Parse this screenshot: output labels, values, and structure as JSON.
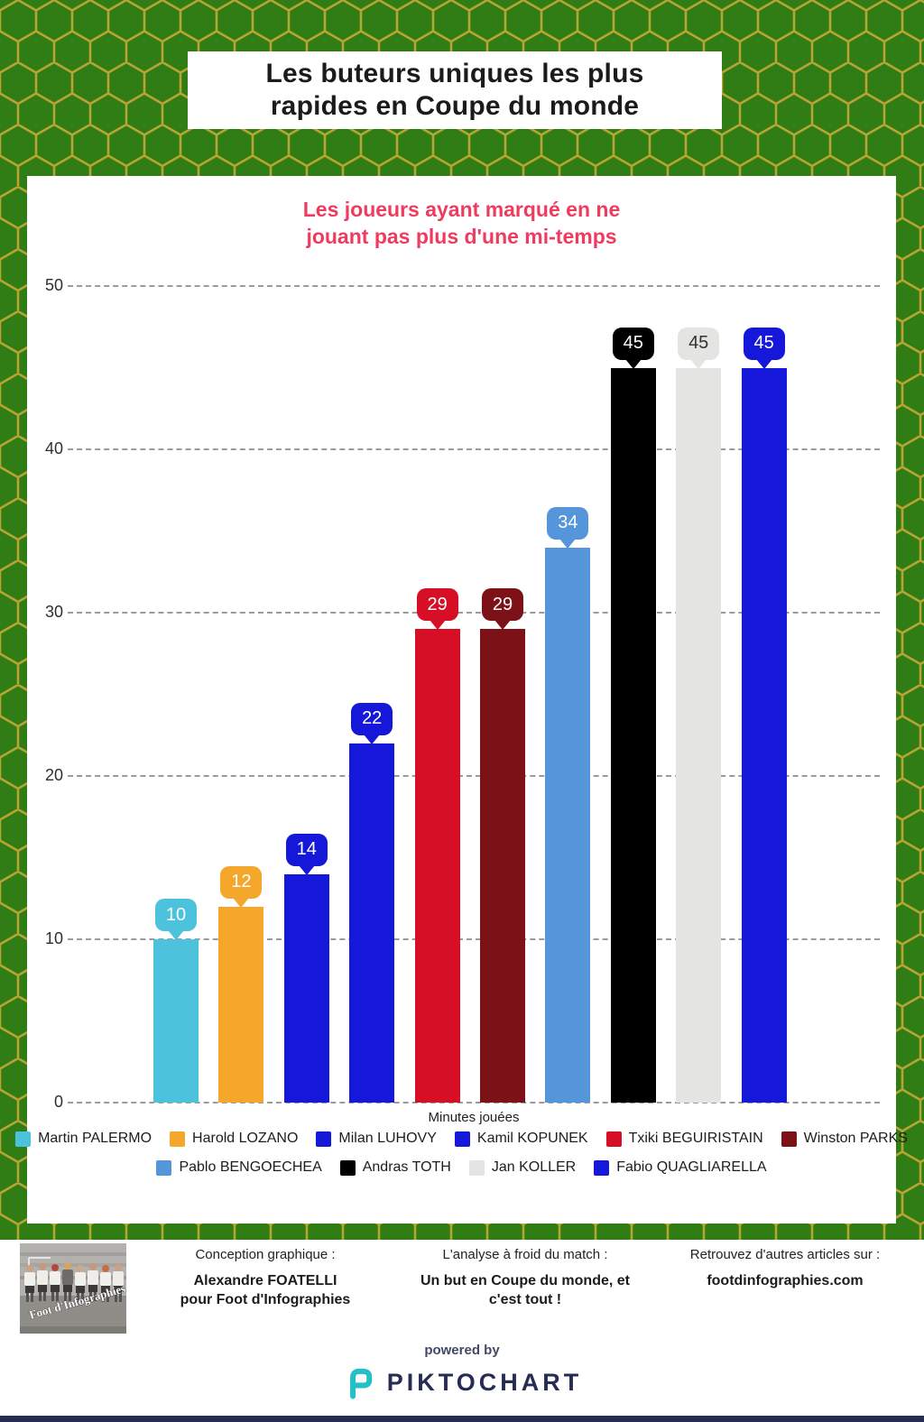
{
  "page": {
    "title": "Les buteurs uniques les plus rapides en Coupe du monde",
    "title_lines": [
      "Les buteurs uniques les plus",
      "rapides en Coupe du monde"
    ]
  },
  "chart": {
    "subtitle": "Les joueurs ayant marqué en ne jouant pas plus d'une mi-temps",
    "subtitle_lines": [
      "Les joueurs ayant marqué en ne",
      "jouant pas plus d'une mi-temps"
    ],
    "xlabel": "Minutes jouées"
  },
  "chart_data": {
    "type": "bar",
    "title": "Les joueurs ayant marqué en ne jouant pas plus d'une mi-temps",
    "xlabel": "Minutes jouées",
    "ylabel": "",
    "ylim": [
      0,
      50
    ],
    "yticks": [
      0,
      10,
      20,
      30,
      40,
      50
    ],
    "grid": true,
    "legend_position": "bottom",
    "categories": [
      "Martin PALERMO",
      "Harold LOZANO",
      "Milan LUHOVY",
      "Kamil KOPUNEK",
      "Txiki BEGUIRISTAIN",
      "Winston PARKS",
      "Pablo BENGOECHEA",
      "Andras TOTH",
      "Jan KOLLER",
      "Fabio QUAGLIARELLA"
    ],
    "values": [
      10,
      12,
      14,
      22,
      29,
      29,
      34,
      45,
      45,
      45
    ],
    "colors": [
      "#4dc2dc",
      "#f5a72c",
      "#1517d9",
      "#1517d9",
      "#d60e26",
      "#7c1118",
      "#5595da",
      "#000000",
      "#e4e4e2",
      "#1517d9"
    ],
    "legend_rows": [
      [
        0,
        1,
        2,
        3,
        4,
        5
      ],
      [
        6,
        7,
        8,
        9
      ]
    ]
  },
  "footer": {
    "col1_label": "Conception graphique :",
    "col1_bold_lines": [
      "Alexandre FOATELLI",
      "pour Foot d'Infographies"
    ],
    "col2_label": "L'analyse à froid du match :",
    "col2_bold_lines": [
      "Un but en Coupe du monde, et",
      "c'est tout !"
    ],
    "col3_label": "Retrouvez d'autres articles sur :",
    "col3_bold": "footdinfographies.com",
    "photo_watermark": "Foot d'Infographies",
    "powered_by": "powered by",
    "brand": "PIKTOCHART"
  },
  "colors": {
    "background_green": "#2f7d14",
    "hex_outline_gold": "#b8a433",
    "subtitle_pink": "#ee3b5e",
    "brand_navy": "#272c55",
    "brand_teal": "#23c0c7"
  }
}
